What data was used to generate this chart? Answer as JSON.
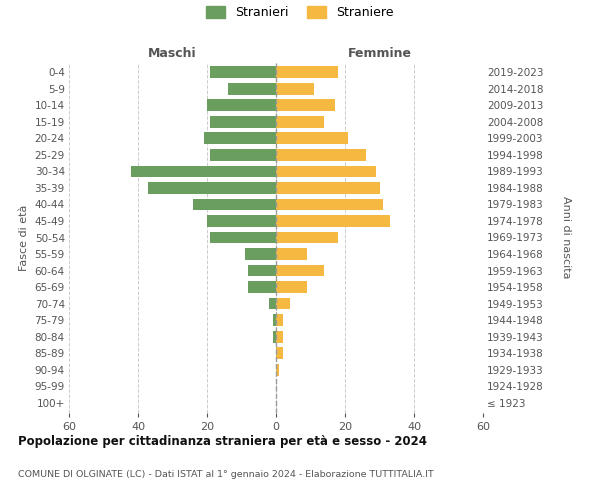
{
  "age_groups": [
    "100+",
    "95-99",
    "90-94",
    "85-89",
    "80-84",
    "75-79",
    "70-74",
    "65-69",
    "60-64",
    "55-59",
    "50-54",
    "45-49",
    "40-44",
    "35-39",
    "30-34",
    "25-29",
    "20-24",
    "15-19",
    "10-14",
    "5-9",
    "0-4"
  ],
  "birth_years": [
    "≤ 1923",
    "1924-1928",
    "1929-1933",
    "1934-1938",
    "1939-1943",
    "1944-1948",
    "1949-1953",
    "1954-1958",
    "1959-1963",
    "1964-1968",
    "1969-1973",
    "1974-1978",
    "1979-1983",
    "1984-1988",
    "1989-1993",
    "1994-1998",
    "1999-2003",
    "2004-2008",
    "2009-2013",
    "2014-2018",
    "2019-2023"
  ],
  "males": [
    0,
    0,
    0,
    0,
    1,
    1,
    2,
    8,
    8,
    9,
    19,
    20,
    24,
    37,
    42,
    19,
    21,
    19,
    20,
    14,
    19
  ],
  "females": [
    0,
    0,
    1,
    2,
    2,
    2,
    4,
    9,
    14,
    9,
    18,
    33,
    31,
    30,
    29,
    26,
    21,
    14,
    17,
    11,
    18
  ],
  "male_color": "#6a9e5e",
  "female_color": "#f5b942",
  "background_color": "#ffffff",
  "grid_color": "#cccccc",
  "title": "Popolazione per cittadinanza straniera per età e sesso - 2024",
  "subtitle": "COMUNE DI OLGINATE (LC) - Dati ISTAT al 1° gennaio 2024 - Elaborazione TUTTITALIA.IT",
  "xlabel_left": "Maschi",
  "xlabel_right": "Femmine",
  "ylabel_left": "Fasce di età",
  "ylabel_right": "Anni di nascita",
  "legend_male": "Stranieri",
  "legend_female": "Straniere",
  "xlim": 60,
  "dpi": 100
}
